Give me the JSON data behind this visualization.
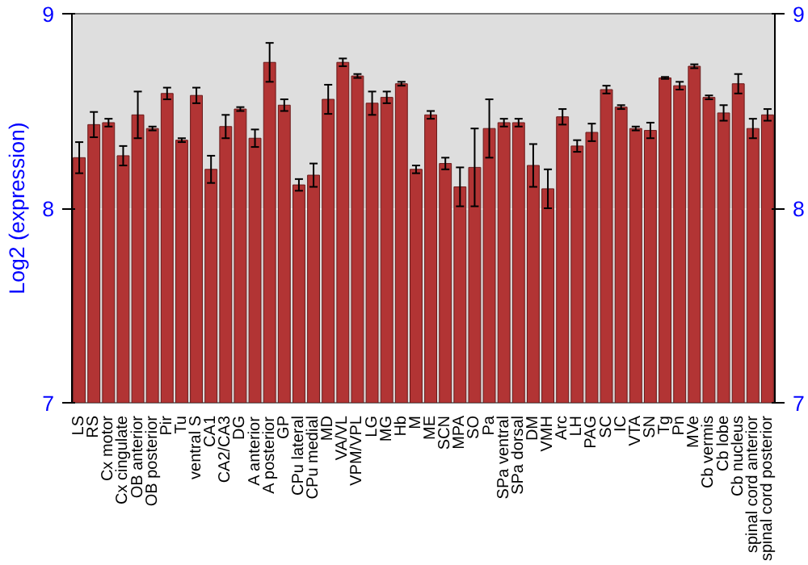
{
  "chart_data": {
    "type": "bar",
    "ylabel": "Log2 (expression)",
    "categories": [
      "LS",
      "RS",
      "Cx motor",
      "Cx cingulate",
      "OB anterior",
      "OB posterior",
      "Pir",
      "Tu",
      "ventral S",
      "CA1",
      "CA2/CA3",
      "DG",
      "A anterior",
      "A posterior",
      "GP",
      "CPu lateral",
      "CPu medial",
      "MD",
      "VA/VL",
      "VPM/VPL",
      "LG",
      "MG",
      "Hb",
      "M",
      "ME",
      "SCN",
      "MPA",
      "SO",
      "Pa",
      "SPa ventral",
      "SPa dorsal",
      "DM",
      "VMH",
      "Arc",
      "LH",
      "PAG",
      "SC",
      "IC",
      "VTA",
      "SN",
      "Tg",
      "Pn",
      "MVe",
      "Cb vermis",
      "Cb lobe",
      "Cb nucleus",
      "spinal cord anterior",
      "spinal cord posterior"
    ],
    "values": [
      8.26,
      8.43,
      8.44,
      8.27,
      8.48,
      8.41,
      8.59,
      8.35,
      8.58,
      8.2,
      8.42,
      8.51,
      8.36,
      8.75,
      8.53,
      8.12,
      8.17,
      8.56,
      8.75,
      8.68,
      8.54,
      8.57,
      8.64,
      8.2,
      8.48,
      8.23,
      8.11,
      8.21,
      8.41,
      8.44,
      8.44,
      8.22,
      8.1,
      8.47,
      8.32,
      8.39,
      8.61,
      8.52,
      8.41,
      8.4,
      8.67,
      8.63,
      8.73,
      8.57,
      8.49,
      8.64,
      8.41,
      8.48
    ],
    "errors": [
      0.08,
      0.065,
      0.02,
      0.05,
      0.12,
      0.01,
      0.03,
      0.01,
      0.04,
      0.07,
      0.06,
      0.01,
      0.045,
      0.1,
      0.03,
      0.03,
      0.06,
      0.075,
      0.02,
      0.01,
      0.06,
      0.03,
      0.01,
      0.02,
      0.02,
      0.03,
      0.1,
      0.2,
      0.15,
      0.02,
      0.02,
      0.11,
      0.1,
      0.04,
      0.03,
      0.045,
      0.02,
      0.01,
      0.01,
      0.04,
      0.005,
      0.02,
      0.01,
      0.01,
      0.04,
      0.05,
      0.05,
      0.03
    ],
    "color": "#b23434",
    "ylim": [
      7,
      9
    ],
    "yticks": [
      7,
      8,
      9
    ],
    "y2lim": [
      7,
      9
    ],
    "y2ticks": [
      7,
      8,
      9
    ],
    "grid": "y"
  }
}
